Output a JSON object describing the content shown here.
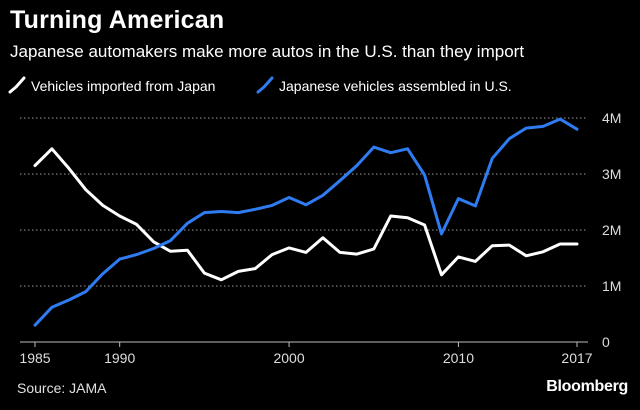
{
  "chart_data": {
    "type": "line",
    "title": "Turning American",
    "subtitle": "Japanese automakers make more autos in the U.S. than they import",
    "xlabel": "",
    "ylabel": "",
    "xlim": [
      1985,
      2017
    ],
    "ylim": [
      0,
      4000000
    ],
    "x_ticks": [
      1985,
      1990,
      2000,
      2010,
      2017
    ],
    "x_tick_labels": [
      "1985",
      "1990",
      "2000",
      "2010",
      "2017"
    ],
    "y_ticks": [
      0,
      1000000,
      2000000,
      3000000,
      4000000
    ],
    "y_tick_labels": [
      "0",
      "1M",
      "2M",
      "3M",
      "4M"
    ],
    "grid": "horizontal dotted",
    "legend_position": "top-left",
    "x": [
      1985,
      1986,
      1987,
      1988,
      1989,
      1990,
      1991,
      1992,
      1993,
      1994,
      1995,
      1996,
      1997,
      1998,
      1999,
      2000,
      2001,
      2002,
      2003,
      2004,
      2005,
      2006,
      2007,
      2008,
      2009,
      2010,
      2011,
      2012,
      2013,
      2014,
      2015,
      2016,
      2017
    ],
    "series": [
      {
        "name": "Vehicles imported from Japan",
        "color": "#ffffff",
        "values": [
          3150000,
          3450000,
          3100000,
          2720000,
          2440000,
          2250000,
          2100000,
          1790000,
          1620000,
          1640000,
          1230000,
          1110000,
          1260000,
          1310000,
          1560000,
          1680000,
          1600000,
          1860000,
          1600000,
          1570000,
          1660000,
          2250000,
          2220000,
          2090000,
          1200000,
          1520000,
          1440000,
          1720000,
          1730000,
          1540000,
          1610000,
          1750000,
          1750000
        ]
      },
      {
        "name": "Japanese vehicles assembled in U.S.",
        "color": "#2f7cf2",
        "values": [
          300000,
          620000,
          750000,
          900000,
          1220000,
          1480000,
          1560000,
          1670000,
          1810000,
          2120000,
          2310000,
          2330000,
          2310000,
          2370000,
          2440000,
          2580000,
          2450000,
          2620000,
          2880000,
          3150000,
          3480000,
          3380000,
          3450000,
          2980000,
          1930000,
          2560000,
          2430000,
          3280000,
          3630000,
          3820000,
          3850000,
          3980000,
          3800000
        ]
      }
    ]
  },
  "source": "Source: JAMA",
  "brand": "Bloomberg"
}
